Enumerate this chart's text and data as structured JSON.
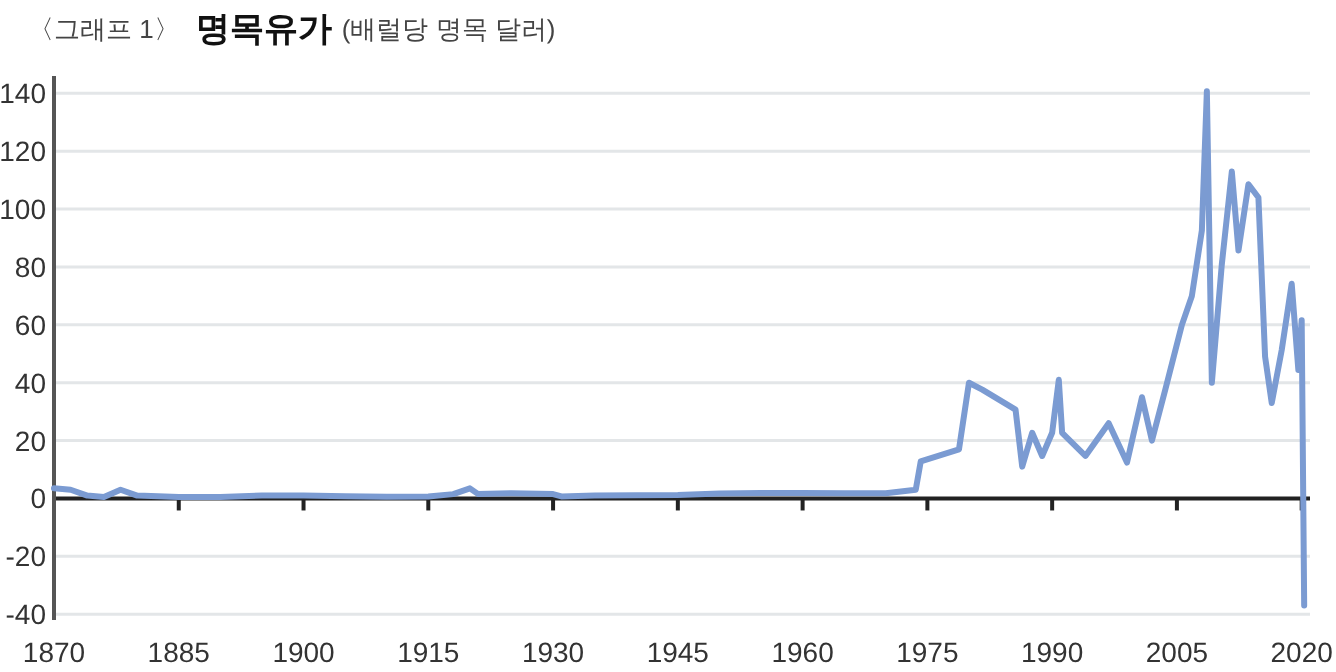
{
  "chart_data": {
    "type": "line",
    "title": "명목유가",
    "subtitle": "(배럴당 명목 달러)",
    "annotations": [
      "〈그래프 1〉"
    ],
    "xlim": [
      1870,
      2021
    ],
    "xticks": [
      1870,
      1885,
      1900,
      1915,
      1930,
      1945,
      1960,
      1975,
      1990,
      2005,
      2020
    ],
    "ylim": [
      -42,
      146
    ],
    "yticks": [
      -40,
      -20,
      0,
      20,
      40,
      60,
      80,
      100,
      120,
      140
    ],
    "grid": "y",
    "series": [
      {
        "color": "#7b9bd2",
        "x": [
          1870,
          1872,
          1874,
          1876,
          1878,
          1880,
          1885,
          1890,
          1895,
          1900,
          1905,
          1910,
          1915,
          1918,
          1920,
          1921,
          1925,
          1930,
          1931,
          1935,
          1940,
          1945,
          1950,
          1955,
          1960,
          1965,
          1970,
          1973.6,
          1974.2,
          1978.8,
          1980,
          1981.6,
          1985.6,
          1986.4,
          1987.6,
          1988.8,
          1990,
          1990.8,
          1991.2,
          1994,
          1996.8,
          1999,
          2000.8,
          2002,
          2003.6,
          2005.6,
          2006.8,
          2008,
          2008.6,
          2009.2,
          2010.4,
          2011.6,
          2012.4,
          2013.6,
          2014.8,
          2015.6,
          2016.4,
          2017.6,
          2018.8,
          2019.6,
          2020,
          2020.3
        ],
        "values": [
          3.5,
          3,
          1,
          0.5,
          3,
          1,
          0.5,
          0.5,
          1,
          1,
          0.8,
          0.6,
          0.7,
          1.5,
          3.5,
          1.5,
          1.8,
          1.5,
          0.7,
          1,
          1.1,
          1.2,
          1.7,
          1.9,
          1.9,
          1.8,
          1.8,
          3,
          12.8,
          17,
          40,
          37.6,
          30.7,
          11,
          22.7,
          14.7,
          22.7,
          41,
          22.7,
          14.7,
          26,
          12.4,
          35,
          20,
          37.6,
          60,
          70,
          92.6,
          140.7,
          40,
          81,
          113,
          85.7,
          108.6,
          104,
          49,
          33,
          51.3,
          74.2,
          44.4,
          61.6,
          -37
        ]
      }
    ]
  }
}
